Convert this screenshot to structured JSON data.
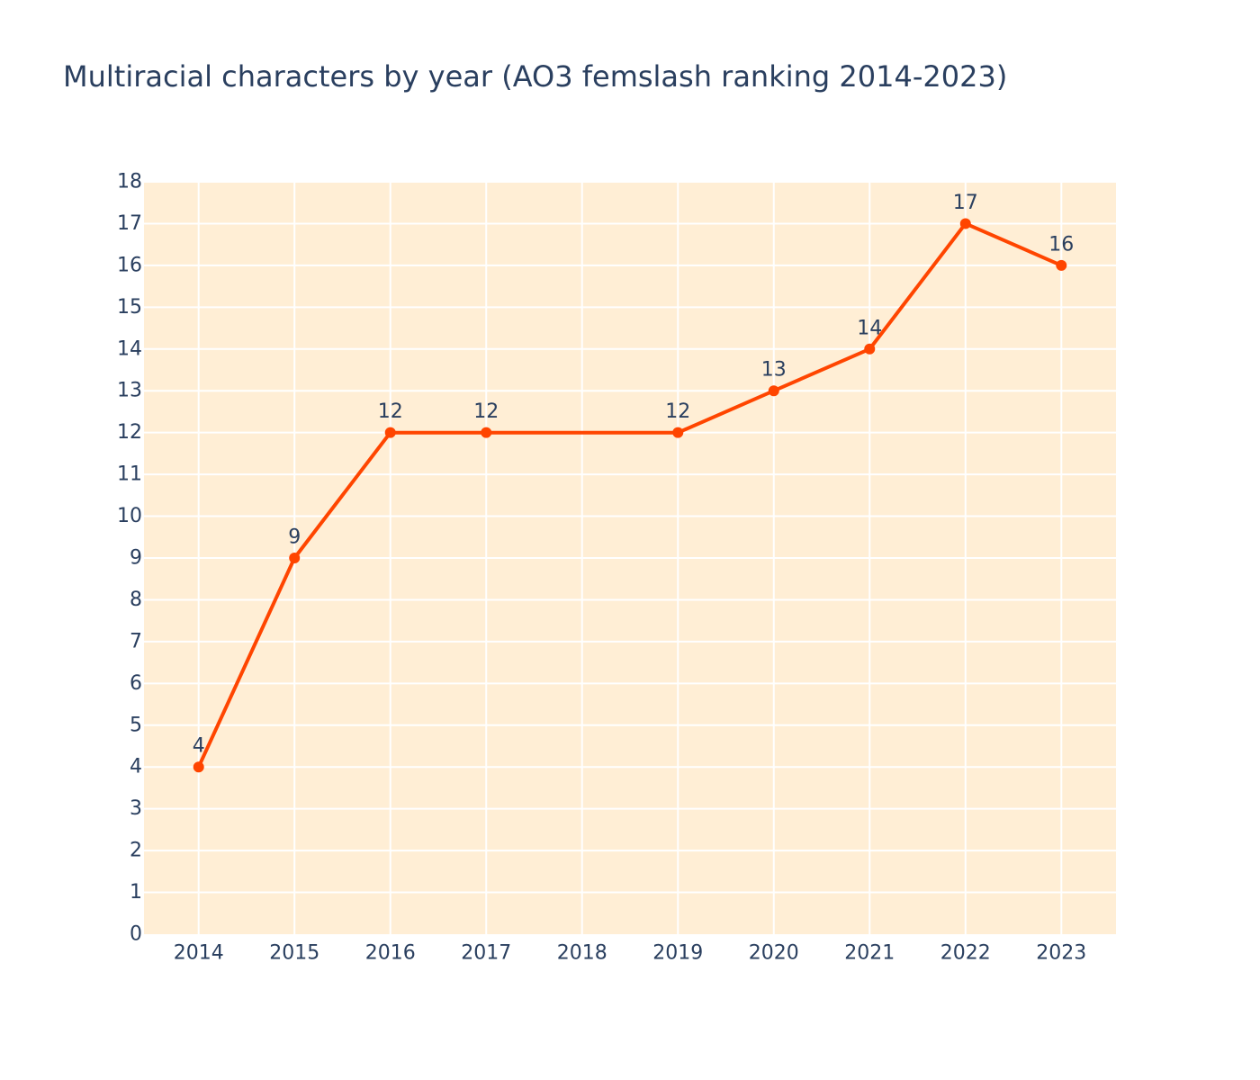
{
  "chart_data": {
    "type": "line",
    "title": "Multiracial characters by year (AO3 femslash ranking 2014-2023)",
    "xlabel": "",
    "ylabel": "",
    "x": [
      2014,
      2015,
      2016,
      2017,
      2019,
      2020,
      2021,
      2022,
      2023
    ],
    "y": [
      4,
      9,
      12,
      12,
      12,
      13,
      14,
      17,
      16
    ],
    "data_labels": [
      "4",
      "9",
      "12",
      "12",
      "12",
      "13",
      "14",
      "17",
      "16"
    ],
    "xticks": [
      "2014",
      "2015",
      "2016",
      "2017",
      "2018",
      "2019",
      "2020",
      "2021",
      "2022",
      "2023"
    ],
    "yticks": [
      "0",
      "1",
      "2",
      "3",
      "4",
      "5",
      "6",
      "7",
      "8",
      "9",
      "10",
      "11",
      "12",
      "13",
      "14",
      "15",
      "16",
      "17",
      "18"
    ],
    "xlim": [
      2013.43,
      2023.57
    ],
    "ylim": [
      0,
      18
    ],
    "grid": true,
    "legend": "none",
    "colors": {
      "line": "#ff4500",
      "plot_background": "#ffeed5",
      "grid": "#ffffff",
      "text": "#2a3f5f"
    }
  }
}
